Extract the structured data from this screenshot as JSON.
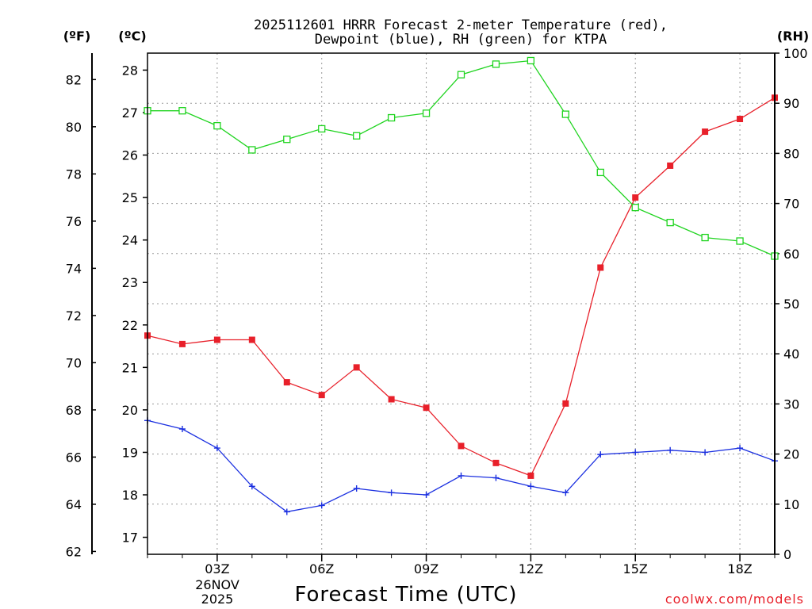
{
  "chart_data": {
    "type": "line",
    "title_line1": "2025112601 HRRR Forecast 2-meter Temperature (red),",
    "title_line2": "Dewpoint (blue), RH (green) for KTPA",
    "xlabel": "Forecast Time (UTC)",
    "date_label": [
      "26NOV",
      "2025"
    ],
    "credit": "coolwx.com/models",
    "units": {
      "fahrenheit": "(ºF)",
      "celsius": "(ºC)",
      "rh": "(RH)"
    },
    "x_hours": [
      1,
      2,
      3,
      4,
      5,
      6,
      7,
      8,
      9,
      10,
      11,
      12,
      13,
      14,
      15,
      16,
      17,
      18,
      19
    ],
    "x_tick_hours": [
      3,
      6,
      9,
      12,
      15,
      18
    ],
    "x_tick_labels": [
      "03Z",
      "06Z",
      "09Z",
      "12Z",
      "15Z",
      "18Z"
    ],
    "xlim": [
      1,
      19
    ],
    "celsius_axis": {
      "ylim": [
        16.6,
        28.4
      ],
      "ticks": [
        17,
        18,
        19,
        20,
        21,
        22,
        23,
        24,
        25,
        26,
        27,
        28
      ]
    },
    "fahrenheit_axis": {
      "ticks": [
        62,
        64,
        66,
        68,
        70,
        72,
        74,
        76,
        78,
        80,
        82
      ]
    },
    "rh_axis": {
      "ylim": [
        0,
        100
      ],
      "ticks": [
        0,
        10,
        20,
        30,
        40,
        50,
        60,
        70,
        80,
        90,
        100
      ]
    },
    "series": [
      {
        "name": "Temperature",
        "color": "#e8202a",
        "marker": "filled-square",
        "axis": "celsius",
        "values": [
          21.75,
          21.55,
          21.65,
          21.65,
          20.65,
          20.35,
          21.0,
          20.25,
          20.05,
          19.15,
          18.75,
          18.45,
          20.15,
          23.35,
          25.0,
          25.75,
          26.55,
          26.85,
          27.35
        ]
      },
      {
        "name": "Dewpoint",
        "color": "#1a2fe0",
        "marker": "plus",
        "axis": "celsius",
        "values": [
          19.75,
          19.55,
          19.1,
          18.2,
          17.6,
          17.75,
          18.15,
          18.05,
          18.0,
          18.45,
          18.4,
          18.2,
          18.05,
          18.95,
          19.0,
          19.05,
          19.0,
          19.1,
          18.8
        ]
      },
      {
        "name": "RH",
        "color": "#1fd41f",
        "marker": "open-square",
        "axis": "rh",
        "values": [
          88.5,
          88.5,
          85.5,
          80.7,
          82.8,
          84.9,
          83.5,
          87.1,
          88.0,
          95.7,
          97.8,
          98.5,
          87.8,
          76.2,
          69.2,
          66.2,
          63.2,
          62.5,
          59.5
        ]
      }
    ]
  }
}
